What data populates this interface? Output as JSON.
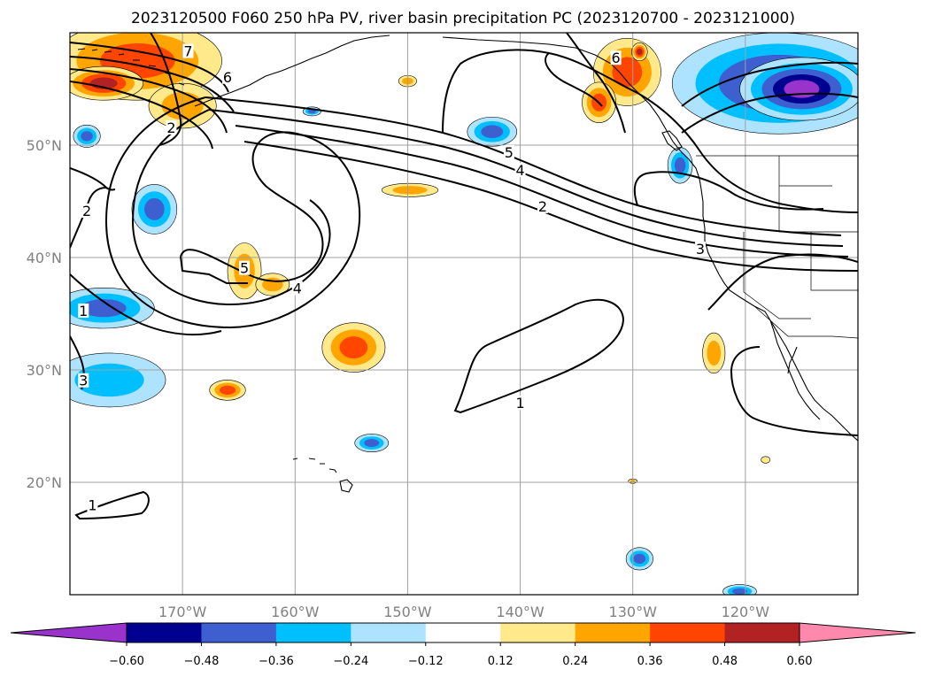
{
  "title": "2023120500 F060 250 hPa PV, river basin precipitation PC (2023120700 - 2023121000)",
  "map": {
    "projection": "plate-carree",
    "lon_range": [
      -180,
      -110
    ],
    "lat_range": [
      10,
      60
    ],
    "gridlines": true,
    "lat_ticks": [
      {
        "value": 20,
        "label": "20°N"
      },
      {
        "value": 30,
        "label": "30°N"
      },
      {
        "value": 40,
        "label": "40°N"
      },
      {
        "value": 50,
        "label": "50°N"
      }
    ],
    "lon_ticks": [
      {
        "value": -170,
        "label": "170°W"
      },
      {
        "value": -160,
        "label": "160°W"
      },
      {
        "value": -150,
        "label": "150°W"
      },
      {
        "value": -140,
        "label": "140°W"
      },
      {
        "value": -130,
        "label": "130°W"
      },
      {
        "value": -120,
        "label": "120°W"
      }
    ]
  },
  "colorbar": {
    "extend": "both",
    "colors": [
      "#9933cc",
      "#000090",
      "#3d5fd0",
      "#00bfff",
      "#ade3ff",
      "#ffffff",
      "#ffe98a",
      "#ffa500",
      "#ff4500",
      "#b22222",
      "#ff89ad"
    ],
    "bounds": [
      -0.72,
      -0.6,
      -0.48,
      -0.36,
      -0.24,
      -0.12,
      0.12,
      0.24,
      0.36,
      0.48,
      0.6,
      0.72
    ],
    "tick_labels": [
      "−0.60",
      "−0.48",
      "−0.36",
      "−0.24",
      "−0.12",
      "0.12",
      "0.24",
      "0.36",
      "0.48",
      "0.60"
    ]
  },
  "pv_contour_labels": [
    {
      "text": "7",
      "lon": -169.5,
      "lat": 58.3
    },
    {
      "text": "6",
      "lon": -166.0,
      "lat": 56.0
    },
    {
      "text": "2",
      "lon": -171.0,
      "lat": 51.5
    },
    {
      "text": "2",
      "lon": -178.5,
      "lat": 44.1
    },
    {
      "text": "5",
      "lon": -141.0,
      "lat": 49.3
    },
    {
      "text": "4",
      "lon": -140.0,
      "lat": 47.7
    },
    {
      "text": "2",
      "lon": -138.0,
      "lat": 44.5
    },
    {
      "text": "5",
      "lon": -164.5,
      "lat": 39.0
    },
    {
      "text": "4",
      "lon": -159.8,
      "lat": 37.2
    },
    {
      "text": "1",
      "lon": -178.8,
      "lat": 35.2
    },
    {
      "text": "1",
      "lon": -140.0,
      "lat": 27.0
    },
    {
      "text": "1",
      "lon": -178.0,
      "lat": 17.9
    },
    {
      "text": "3",
      "lon": -124.0,
      "lat": 40.7
    },
    {
      "text": "6",
      "lon": -131.5,
      "lat": 57.7
    },
    {
      "text": "3",
      "lon": -178.8,
      "lat": 29.0
    }
  ],
  "precip_anomalies": [
    {
      "lon": -174,
      "lat": 57.5,
      "rx": 7.5,
      "ry": 3.5,
      "level": 3
    },
    {
      "lon": -177,
      "lat": 55.5,
      "rx": 3.5,
      "ry": 1.5,
      "level": 4
    },
    {
      "lon": -170,
      "lat": 53.5,
      "rx": 3.0,
      "ry": 2.0,
      "level": 2
    },
    {
      "lon": -172.5,
      "lat": 44.3,
      "rx": 2.0,
      "ry": 2.2,
      "level": -3
    },
    {
      "lon": -164.5,
      "lat": 38.8,
      "rx": 1.5,
      "ry": 2.5,
      "level": 2
    },
    {
      "lon": -162,
      "lat": 37.6,
      "rx": 1.5,
      "ry": 1.0,
      "level": 2
    },
    {
      "lon": -154.8,
      "lat": 32.0,
      "rx": 2.8,
      "ry": 2.2,
      "level": 3
    },
    {
      "lon": -166,
      "lat": 28.2,
      "rx": 1.6,
      "ry": 0.9,
      "level": 3
    },
    {
      "lon": -149.8,
      "lat": 46.0,
      "rx": 2.5,
      "ry": 0.6,
      "level": 2
    },
    {
      "lon": -150,
      "lat": 55.7,
      "rx": 0.8,
      "ry": 0.5,
      "level": 2
    },
    {
      "lon": -158.5,
      "lat": 53.0,
      "rx": 0.8,
      "ry": 0.4,
      "level": -3
    },
    {
      "lon": -142.5,
      "lat": 51.2,
      "rx": 2.2,
      "ry": 1.3,
      "level": -3
    },
    {
      "lon": -178.5,
      "lat": 50.8,
      "rx": 1.2,
      "ry": 1.0,
      "level": -3
    },
    {
      "lon": -177,
      "lat": 35.5,
      "rx": 4.5,
      "ry": 1.8,
      "level": -3
    },
    {
      "lon": -176.5,
      "lat": 29.1,
      "rx": 5.0,
      "ry": 2.4,
      "level": -2
    },
    {
      "lon": -153.2,
      "lat": 23.5,
      "rx": 1.5,
      "ry": 0.8,
      "level": -3
    },
    {
      "lon": -130.5,
      "lat": 56.5,
      "rx": 3.0,
      "ry": 3.0,
      "level": 3
    },
    {
      "lon": -129.4,
      "lat": 58.3,
      "rx": 0.7,
      "ry": 0.8,
      "level": 4
    },
    {
      "lon": -133,
      "lat": 53.8,
      "rx": 1.5,
      "ry": 1.8,
      "level": 3
    },
    {
      "lon": -125.8,
      "lat": 48.2,
      "rx": 1.1,
      "ry": 1.6,
      "level": -3
    },
    {
      "lon": -117,
      "lat": 55.5,
      "rx": 9.5,
      "ry": 4.5,
      "level": -4
    },
    {
      "lon": -115,
      "lat": 55.0,
      "rx": 5.5,
      "ry": 2.8,
      "level": -5
    },
    {
      "lon": -122.8,
      "lat": 31.5,
      "rx": 1.0,
      "ry": 1.8,
      "level": 2
    },
    {
      "lon": -129.4,
      "lat": 13.2,
      "rx": 1.2,
      "ry": 1.0,
      "level": -3
    },
    {
      "lon": -120.5,
      "lat": 10.3,
      "rx": 1.5,
      "ry": 0.6,
      "level": -3
    },
    {
      "lon": -130,
      "lat": 20.1,
      "rx": 0.4,
      "ry": 0.2,
      "level": 2
    },
    {
      "lon": -118.2,
      "lat": 22.0,
      "rx": 0.4,
      "ry": 0.3,
      "level": 1
    }
  ]
}
